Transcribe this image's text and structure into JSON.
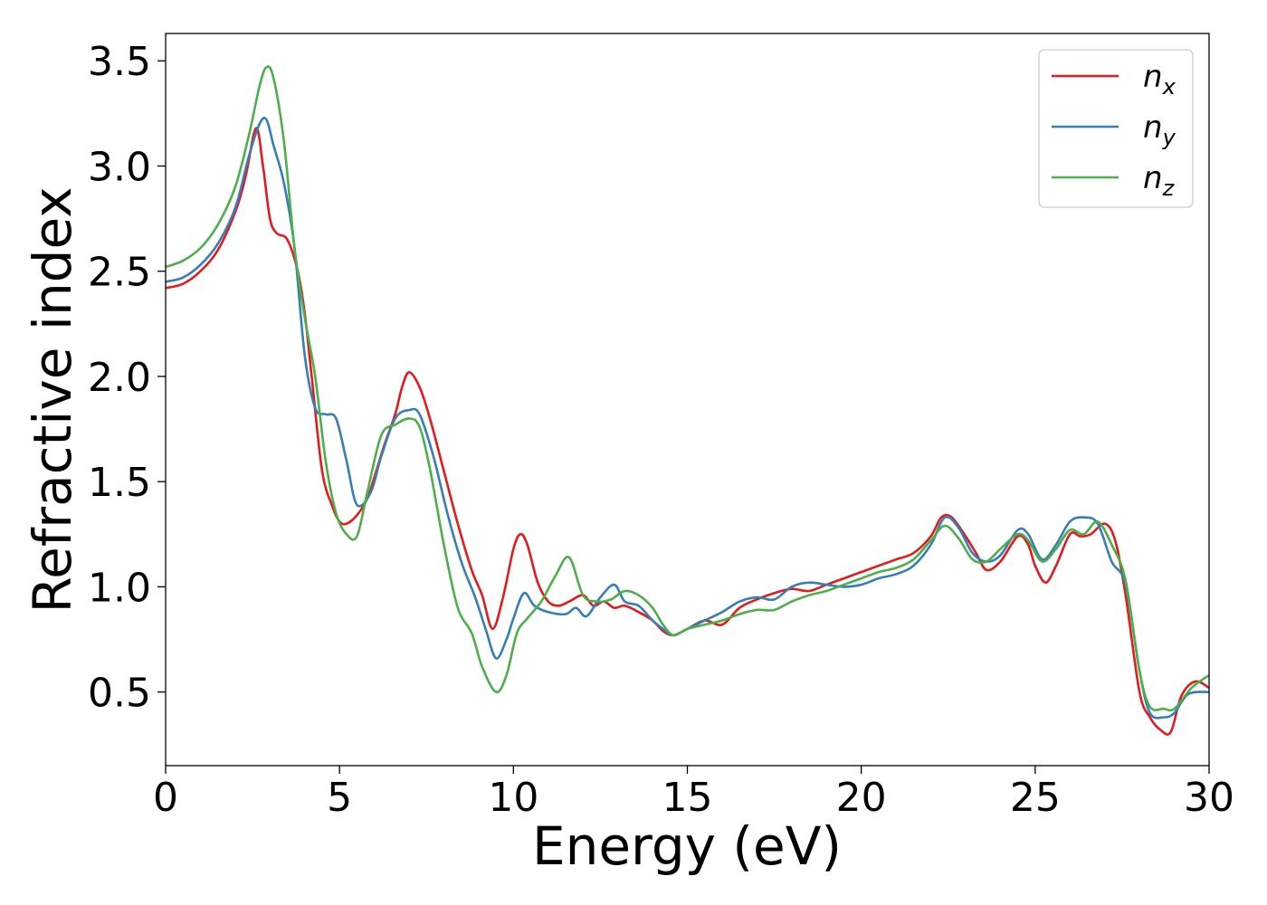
{
  "chart_data": {
    "type": "line",
    "title": "",
    "xlabel": "Energy (eV)",
    "ylabel": "Refractive index",
    "xlim": [
      0,
      30
    ],
    "ylim": [
      0.15,
      3.63
    ],
    "xticks": [
      0,
      5,
      10,
      15,
      20,
      25,
      30
    ],
    "xtick_labels": [
      "0",
      "5",
      "10",
      "15",
      "20",
      "25",
      "30"
    ],
    "yticks": [
      0.5,
      1.0,
      1.5,
      2.0,
      2.5,
      3.0,
      3.5
    ],
    "ytick_labels": [
      "0.5",
      "1.0",
      "1.5",
      "2.0",
      "2.5",
      "3.0",
      "3.5"
    ],
    "grid": false,
    "legend_position": "top-right",
    "series": [
      {
        "name": "n_x",
        "label_main": "n",
        "label_sub": "x",
        "color": "#e41a1c",
        "x": [
          0,
          0.5,
          1,
          1.5,
          2,
          2.3,
          2.6,
          2.8,
          3.0,
          3.2,
          3.5,
          3.8,
          4.0,
          4.2,
          4.5,
          4.8,
          5.0,
          5.2,
          5.5,
          5.8,
          6.0,
          6.3,
          6.6,
          6.8,
          7.0,
          7.3,
          7.6,
          8.0,
          8.4,
          8.8,
          9.1,
          9.4,
          9.7,
          10.0,
          10.2,
          10.4,
          10.7,
          11.0,
          11.3,
          11.6,
          12.0,
          12.3,
          12.6,
          12.9,
          13.2,
          13.6,
          14.0,
          14.3,
          14.6,
          15.0,
          15.5,
          16.0,
          16.5,
          17.0,
          17.5,
          18.0,
          18.5,
          19.0,
          19.5,
          20.0,
          20.5,
          21.0,
          21.5,
          22.0,
          22.3,
          22.6,
          23.0,
          23.3,
          23.6,
          24.0,
          24.5,
          24.8,
          25.0,
          25.3,
          25.6,
          26.0,
          26.3,
          26.6,
          27.0,
          27.3,
          27.6,
          28.0,
          28.3,
          28.6,
          28.9,
          29.2,
          29.6,
          30.0
        ],
        "y": [
          2.42,
          2.44,
          2.5,
          2.6,
          2.78,
          2.95,
          3.18,
          3.0,
          2.75,
          2.68,
          2.65,
          2.5,
          2.3,
          2.0,
          1.55,
          1.38,
          1.31,
          1.3,
          1.34,
          1.42,
          1.52,
          1.68,
          1.82,
          1.95,
          2.02,
          1.95,
          1.8,
          1.55,
          1.3,
          1.08,
          0.96,
          0.8,
          0.95,
          1.18,
          1.25,
          1.2,
          1.02,
          0.93,
          0.91,
          0.93,
          0.96,
          0.91,
          0.93,
          0.9,
          0.91,
          0.88,
          0.84,
          0.79,
          0.77,
          0.8,
          0.84,
          0.82,
          0.9,
          0.94,
          0.97,
          0.99,
          0.98,
          1.01,
          1.04,
          1.07,
          1.1,
          1.13,
          1.16,
          1.24,
          1.33,
          1.33,
          1.24,
          1.16,
          1.08,
          1.12,
          1.24,
          1.2,
          1.1,
          1.02,
          1.1,
          1.25,
          1.24,
          1.25,
          1.3,
          1.22,
          0.96,
          0.5,
          0.38,
          0.32,
          0.31,
          0.48,
          0.55,
          0.52
        ]
      },
      {
        "name": "n_y",
        "label_main": "n",
        "label_sub": "y",
        "color": "#377eb8",
        "x": [
          0,
          0.5,
          1,
          1.5,
          2,
          2.4,
          2.7,
          2.9,
          3.1,
          3.4,
          3.7,
          4.0,
          4.3,
          4.6,
          4.9,
          5.2,
          5.5,
          5.9,
          6.2,
          6.6,
          7.0,
          7.3,
          7.7,
          8.1,
          8.5,
          8.9,
          9.2,
          9.5,
          9.8,
          10.0,
          10.3,
          10.6,
          11.0,
          11.5,
          11.8,
          12.1,
          12.5,
          12.9,
          13.2,
          13.6,
          14.0,
          14.3,
          14.6,
          15.0,
          15.5,
          16.0,
          16.5,
          17.0,
          17.5,
          18.0,
          18.5,
          19.0,
          19.5,
          20.0,
          20.5,
          21.0,
          21.5,
          22.0,
          22.4,
          22.8,
          23.2,
          23.6,
          24.0,
          24.5,
          24.8,
          25.2,
          25.6,
          26.0,
          26.4,
          26.8,
          27.2,
          27.6,
          28.0,
          28.3,
          28.7,
          29.0,
          29.4,
          30.0
        ],
        "y": [
          2.45,
          2.47,
          2.53,
          2.63,
          2.8,
          3.05,
          3.2,
          3.22,
          3.1,
          2.92,
          2.62,
          2.1,
          1.85,
          1.82,
          1.8,
          1.6,
          1.39,
          1.45,
          1.62,
          1.8,
          1.84,
          1.82,
          1.62,
          1.35,
          1.12,
          0.95,
          0.8,
          0.66,
          0.75,
          0.85,
          0.97,
          0.91,
          0.88,
          0.87,
          0.9,
          0.86,
          0.95,
          1.01,
          0.93,
          0.91,
          0.84,
          0.8,
          0.77,
          0.8,
          0.84,
          0.88,
          0.93,
          0.95,
          0.94,
          1.0,
          1.02,
          1.01,
          1.0,
          1.01,
          1.04,
          1.06,
          1.1,
          1.2,
          1.33,
          1.28,
          1.16,
          1.12,
          1.15,
          1.27,
          1.25,
          1.13,
          1.2,
          1.31,
          1.33,
          1.3,
          1.12,
          1.01,
          0.6,
          0.4,
          0.38,
          0.4,
          0.49,
          0.5
        ]
      },
      {
        "name": "n_z",
        "label_main": "n",
        "label_sub": "z",
        "color": "#4daf4a",
        "x": [
          0,
          0.5,
          1,
          1.5,
          2,
          2.4,
          2.7,
          2.9,
          3.1,
          3.4,
          3.7,
          4.0,
          4.3,
          4.6,
          4.9,
          5.2,
          5.5,
          5.8,
          6.2,
          6.6,
          7.0,
          7.3,
          7.6,
          8.0,
          8.4,
          8.8,
          9.1,
          9.5,
          9.8,
          10.1,
          10.4,
          10.8,
          11.2,
          11.6,
          12.0,
          12.4,
          12.8,
          13.2,
          13.6,
          14.0,
          14.3,
          14.6,
          15.0,
          15.5,
          16.0,
          16.5,
          17.0,
          17.5,
          18.0,
          18.5,
          19.0,
          19.5,
          20.0,
          20.5,
          21.0,
          21.5,
          22.0,
          22.4,
          22.8,
          23.2,
          23.6,
          24.0,
          24.5,
          24.8,
          25.2,
          25.6,
          26.0,
          26.4,
          26.8,
          27.2,
          27.6,
          28.0,
          28.3,
          28.7,
          29.0,
          29.5,
          30.0
        ],
        "y": [
          2.52,
          2.55,
          2.61,
          2.72,
          2.9,
          3.15,
          3.38,
          3.47,
          3.42,
          3.12,
          2.62,
          2.28,
          2.0,
          1.6,
          1.35,
          1.25,
          1.24,
          1.45,
          1.72,
          1.77,
          1.8,
          1.76,
          1.56,
          1.2,
          0.9,
          0.78,
          0.62,
          0.5,
          0.58,
          0.78,
          0.85,
          0.93,
          1.05,
          1.14,
          0.96,
          0.93,
          0.94,
          0.98,
          0.96,
          0.9,
          0.82,
          0.77,
          0.8,
          0.82,
          0.84,
          0.87,
          0.89,
          0.89,
          0.93,
          0.96,
          0.98,
          1.01,
          1.04,
          1.07,
          1.09,
          1.13,
          1.22,
          1.29,
          1.23,
          1.13,
          1.12,
          1.18,
          1.25,
          1.22,
          1.12,
          1.18,
          1.27,
          1.25,
          1.31,
          1.2,
          1.03,
          0.6,
          0.43,
          0.42,
          0.42,
          0.52,
          0.58
        ]
      }
    ]
  }
}
